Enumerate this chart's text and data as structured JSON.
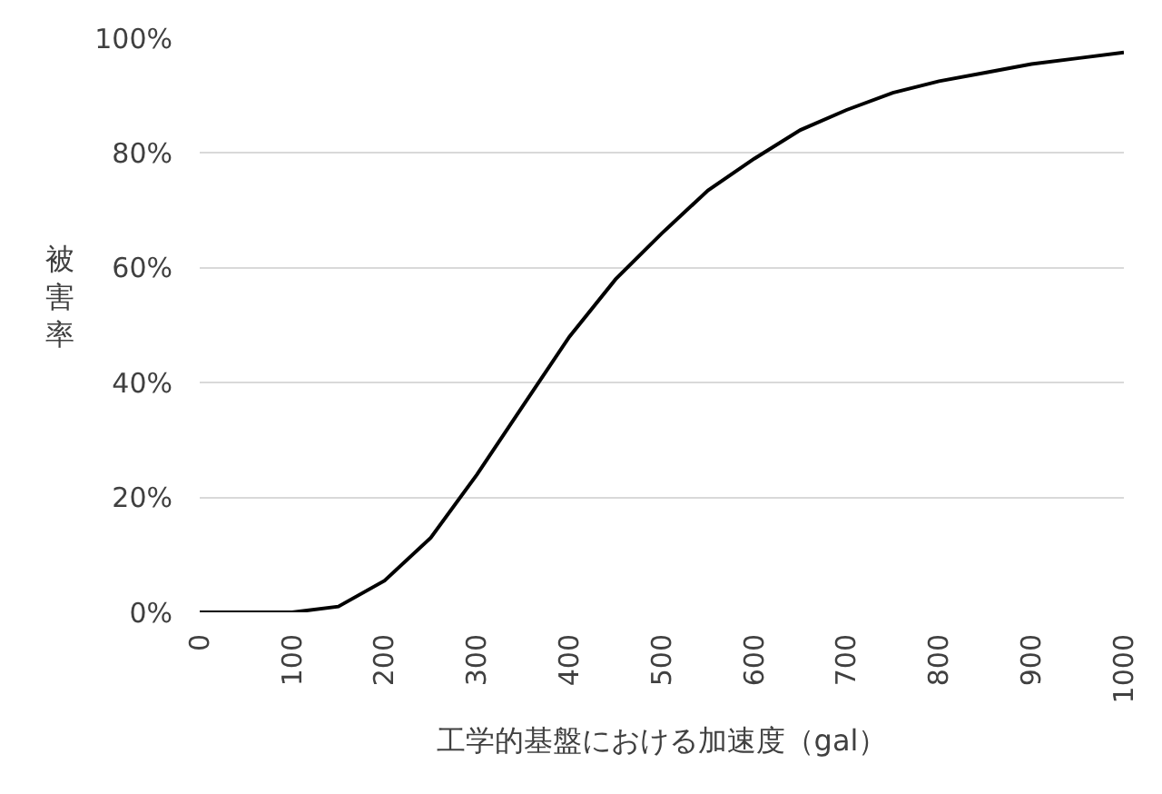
{
  "chart_data": {
    "type": "line",
    "xlabel": "工学的基盤における加速度（gal）",
    "ylabel": "被害率",
    "x": [
      0,
      50,
      100,
      150,
      200,
      250,
      300,
      350,
      400,
      450,
      500,
      550,
      600,
      650,
      700,
      750,
      800,
      850,
      900,
      950,
      1000
    ],
    "series": [
      {
        "color": "#000000",
        "values": [
          0,
          0,
          0,
          1,
          5.5,
          13,
          24,
          36,
          48,
          58,
          66,
          73.5,
          79,
          84,
          87.5,
          90.5,
          92.5,
          94,
          95.5,
          96.5,
          97.5
        ]
      }
    ],
    "xlim": [
      0,
      1000
    ],
    "xticks": [
      0,
      100,
      200,
      300,
      400,
      500,
      600,
      700,
      800,
      900,
      1000
    ],
    "ylim": [
      0,
      100
    ],
    "yticks": [
      {
        "value": 0,
        "label": "0%"
      },
      {
        "value": 20,
        "label": "20%"
      },
      {
        "value": 40,
        "label": "40%"
      },
      {
        "value": 60,
        "label": "60%"
      },
      {
        "value": 80,
        "label": "80%"
      },
      {
        "value": 100,
        "label": "100%"
      }
    ],
    "grid": "y",
    "marker": "none",
    "line_style": "solid"
  }
}
